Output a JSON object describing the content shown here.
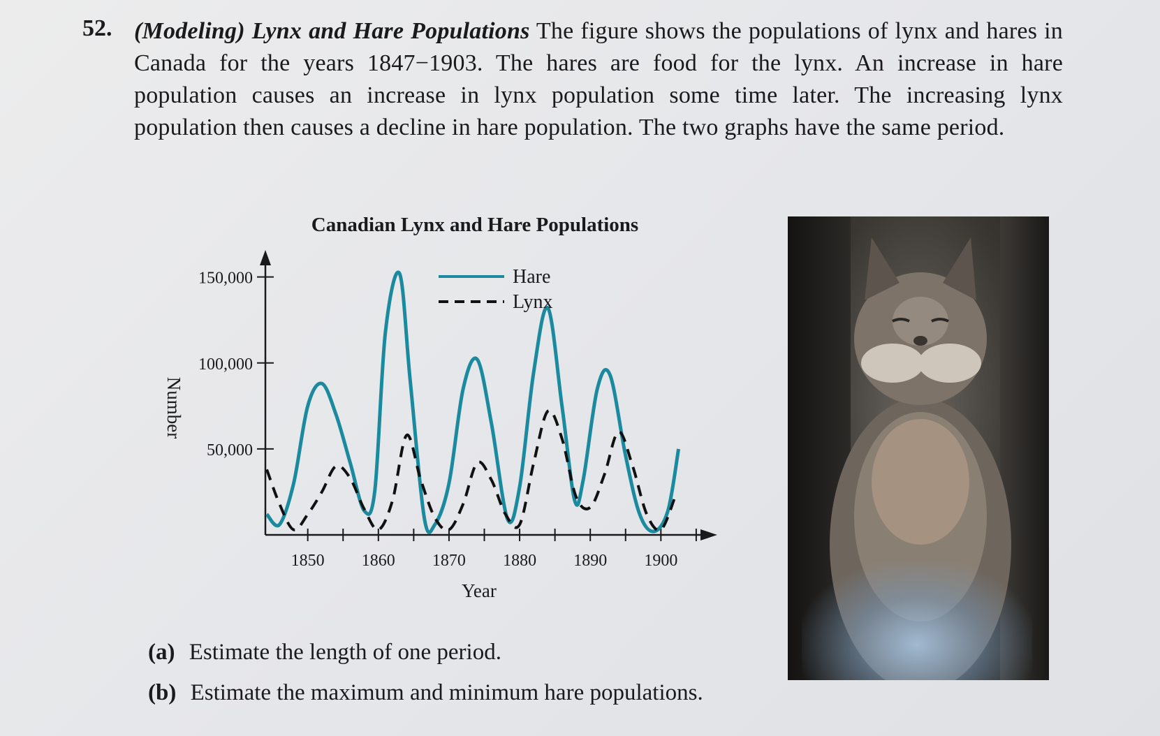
{
  "problem": {
    "number": "52.",
    "heading": "(Modeling) Lynx and Hare Populations",
    "text": "The figure shows the populations of lynx and hares in Canada for the years 1847−1903. The hares are food for the lynx. An increase in hare population causes an increase in lynx population some time later. The increasing lynx population then causes a decline in hare population. The two graphs have the same period."
  },
  "questions": [
    {
      "label": "(a)",
      "text": "Estimate the length of one period."
    },
    {
      "label": "(b)",
      "text": "Estimate the maximum and minimum hare populations."
    }
  ],
  "chart_data": {
    "type": "line",
    "title": "Canadian Lynx and Hare Populations",
    "xlabel": "Year",
    "ylabel": "Number",
    "xlim": [
      1844,
      1906
    ],
    "ylim": [
      0,
      160000
    ],
    "x_ticks": [
      1850,
      1860,
      1870,
      1880,
      1890,
      1900
    ],
    "x_tick_labels": [
      "1850",
      "1860",
      "1870",
      "1880",
      "1890",
      "1900"
    ],
    "y_ticks": [
      50000,
      100000,
      150000
    ],
    "y_tick_labels": [
      "50,000",
      "100,000",
      "150,000"
    ],
    "grid": false,
    "legend": "top-center",
    "series": [
      {
        "name": "Hare",
        "style": "solid",
        "color": "#1b8a9e",
        "points": [
          [
            1844.2,
            12000
          ],
          [
            1846,
            6000
          ],
          [
            1848,
            30000
          ],
          [
            1850,
            75000
          ],
          [
            1852,
            88000
          ],
          [
            1854,
            70000
          ],
          [
            1856,
            42000
          ],
          [
            1858,
            14000
          ],
          [
            1859.5,
            26000
          ],
          [
            1861,
            118000
          ],
          [
            1863,
            152000
          ],
          [
            1864.5,
            90000
          ],
          [
            1866.5,
            10000
          ],
          [
            1868,
            6000
          ],
          [
            1870,
            30000
          ],
          [
            1872,
            85000
          ],
          [
            1874,
            102000
          ],
          [
            1876,
            65000
          ],
          [
            1878.3,
            9000
          ],
          [
            1880,
            28000
          ],
          [
            1882,
            95000
          ],
          [
            1884,
            132000
          ],
          [
            1886,
            75000
          ],
          [
            1887.8,
            20000
          ],
          [
            1889,
            32000
          ],
          [
            1891,
            85000
          ],
          [
            1892.8,
            93000
          ],
          [
            1895,
            46000
          ],
          [
            1897,
            12000
          ],
          [
            1899,
            2000
          ],
          [
            1901,
            14000
          ],
          [
            1902.5,
            50000
          ]
        ]
      },
      {
        "name": "Lynx",
        "style": "dashed",
        "color": "#111111",
        "points": [
          [
            1844.2,
            38000
          ],
          [
            1846,
            18000
          ],
          [
            1848,
            3000
          ],
          [
            1850,
            12000
          ],
          [
            1852,
            25000
          ],
          [
            1854,
            40000
          ],
          [
            1856,
            33000
          ],
          [
            1858,
            15000
          ],
          [
            1860,
            3000
          ],
          [
            1862,
            20000
          ],
          [
            1864,
            58000
          ],
          [
            1866,
            32000
          ],
          [
            1868,
            10000
          ],
          [
            1870,
            3000
          ],
          [
            1872,
            18000
          ],
          [
            1874,
            42000
          ],
          [
            1876,
            32000
          ],
          [
            1878,
            12000
          ],
          [
            1880,
            6000
          ],
          [
            1882,
            42000
          ],
          [
            1884,
            72000
          ],
          [
            1886,
            56000
          ],
          [
            1888,
            22000
          ],
          [
            1890,
            16000
          ],
          [
            1892,
            35000
          ],
          [
            1894,
            60000
          ],
          [
            1896,
            40000
          ],
          [
            1898,
            12000
          ],
          [
            1900,
            3000
          ],
          [
            1902,
            22000
          ]
        ]
      }
    ]
  }
}
